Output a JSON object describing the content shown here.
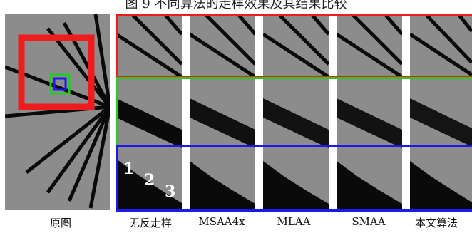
{
  "figure": {
    "title": "图 9   不同算法的走样效果及其结果比较",
    "captions": [
      "原图",
      "无反走样",
      "MSAA4x",
      "MLAA",
      "SMAA",
      "本文算法"
    ],
    "zoom_numbers": [
      "1",
      "2",
      "3"
    ],
    "colors": {
      "background_gray": "#8c8c8c",
      "line_black": "#0a0a0a",
      "red_box": "#ee1c1c",
      "green_box": "#22cc22",
      "blue_box": "#1a1aee"
    }
  }
}
